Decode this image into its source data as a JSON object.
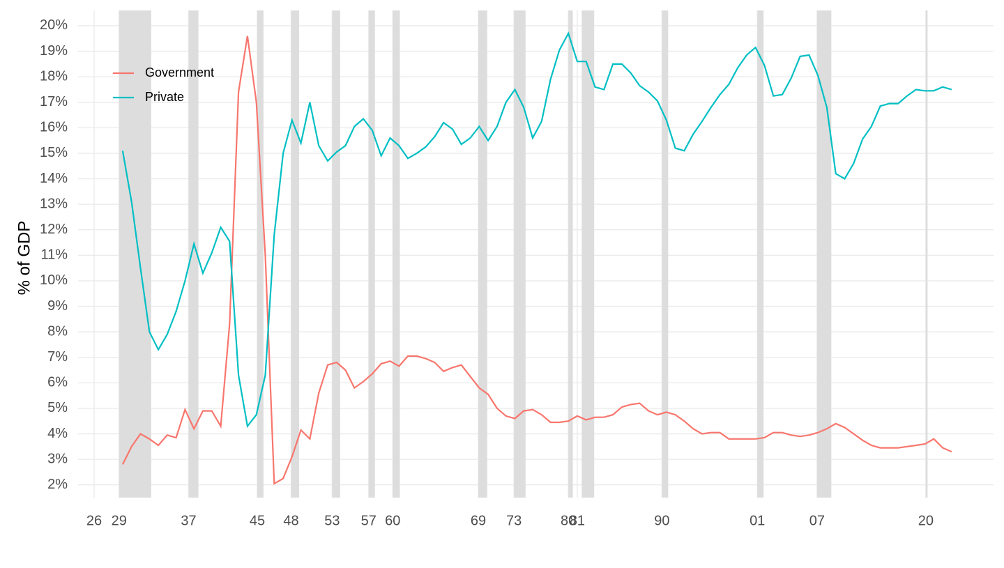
{
  "chart_data": {
    "type": "line",
    "y_label": "% of GDP",
    "x": [
      1930,
      1931,
      1932,
      1933,
      1934,
      1935,
      1936,
      1937,
      1938,
      1939,
      1940,
      1941,
      1942,
      1943,
      1944,
      1945,
      1946,
      1947,
      1948,
      1949,
      1950,
      1951,
      1952,
      1953,
      1954,
      1955,
      1956,
      1957,
      1958,
      1959,
      1960,
      1961,
      1962,
      1963,
      1964,
      1965,
      1966,
      1967,
      1968,
      1969,
      1970,
      1971,
      1972,
      1973,
      1974,
      1975,
      1976,
      1977,
      1978,
      1979,
      1980,
      1981,
      1982,
      1983,
      1984,
      1985,
      1986,
      1987,
      1988,
      1989,
      1990,
      1991,
      1992,
      1993,
      1994,
      1995,
      1996,
      1997,
      1998,
      1999,
      2000,
      2001,
      2002,
      2003,
      2004,
      2005,
      2006,
      2007,
      2008,
      2009,
      2010,
      2011,
      2012,
      2013,
      2014,
      2015,
      2016,
      2017,
      2018,
      2019,
      2020,
      2021,
      2022,
      2023
    ],
    "series": [
      {
        "name": "Government",
        "color": "#f8766d",
        "values": [
          2.8,
          3.5,
          4.0,
          3.8,
          3.55,
          3.95,
          3.85,
          4.95,
          4.2,
          4.9,
          4.9,
          4.3,
          8.3,
          17.4,
          19.6,
          17.0,
          11.0,
          2.05,
          2.25,
          3.1,
          4.15,
          3.8,
          5.6,
          6.7,
          6.8,
          6.5,
          5.8,
          6.05,
          6.35,
          6.75,
          6.85,
          6.65,
          7.05,
          7.05,
          6.95,
          6.8,
          6.45,
          6.6,
          6.7,
          6.25,
          5.8,
          5.55,
          5.0,
          4.7,
          4.6,
          4.9,
          4.95,
          4.75,
          4.45,
          4.45,
          4.5,
          4.7,
          4.55,
          4.65,
          4.65,
          4.75,
          5.05,
          5.15,
          5.2,
          4.9,
          4.75,
          4.85,
          4.75,
          4.5,
          4.2,
          4.0,
          4.05,
          4.05,
          3.8,
          3.8,
          3.8,
          3.8,
          3.85,
          4.05,
          4.05,
          3.95,
          3.9,
          3.95,
          4.05,
          4.2,
          4.4,
          4.25,
          4.0,
          3.75,
          3.55,
          3.45,
          3.45,
          3.45,
          3.5,
          3.55,
          3.6,
          3.8,
          3.45,
          3.3
        ]
      },
      {
        "name": "Private",
        "color": "#00bfc4",
        "values": [
          15.1,
          13.1,
          10.5,
          8.0,
          7.3,
          7.9,
          8.8,
          10.0,
          11.45,
          10.3,
          11.1,
          12.1,
          11.55,
          6.3,
          4.3,
          4.75,
          6.3,
          11.8,
          15.0,
          16.3,
          15.4,
          17.0,
          15.3,
          14.7,
          15.05,
          15.3,
          16.05,
          16.35,
          15.9,
          14.9,
          15.6,
          15.3,
          14.8,
          15.0,
          15.25,
          15.65,
          16.2,
          15.95,
          15.35,
          15.6,
          16.05,
          15.5,
          16.05,
          17.0,
          17.5,
          16.8,
          15.6,
          16.25,
          17.9,
          19.05,
          19.7,
          18.6,
          18.6,
          17.6,
          17.5,
          18.5,
          18.5,
          18.15,
          17.65,
          17.4,
          17.05,
          16.3,
          15.2,
          15.1,
          15.75,
          16.25,
          16.8,
          17.3,
          17.7,
          18.35,
          18.85,
          19.15,
          18.45,
          17.25,
          17.3,
          17.95,
          18.8,
          18.85,
          18.05,
          16.8,
          14.2,
          14.0,
          14.6,
          15.55,
          16.05,
          16.85,
          16.95,
          16.95,
          17.25,
          17.5,
          17.45,
          17.45,
          17.6,
          17.5
        ]
      }
    ],
    "recessions": [
      [
        1929.6,
        1933.2
      ],
      [
        1937.4,
        1938.5
      ],
      [
        1945.1,
        1945.8
      ],
      [
        1948.9,
        1949.8
      ],
      [
        1953.5,
        1954.4
      ],
      [
        1957.6,
        1958.3
      ],
      [
        1960.3,
        1961.1
      ],
      [
        1969.9,
        1970.9
      ],
      [
        1973.9,
        1975.2
      ],
      [
        1980.0,
        1980.5
      ],
      [
        1981.5,
        1982.9
      ],
      [
        1990.5,
        1991.2
      ],
      [
        2001.2,
        2001.9
      ],
      [
        2007.9,
        2009.5
      ],
      [
        2020.1,
        2020.3
      ]
    ],
    "recession_color": "#dddddd",
    "xlim": [
      1925,
      2027.7
    ],
    "xticks": [
      {
        "value": 1926.8,
        "label": "26"
      },
      {
        "value": 1929.6,
        "label": "29"
      },
      {
        "value": 1937.4,
        "label": "37"
      },
      {
        "value": 1945.1,
        "label": "45"
      },
      {
        "value": 1948.9,
        "label": "48"
      },
      {
        "value": 1953.5,
        "label": "53"
      },
      {
        "value": 1957.6,
        "label": "57"
      },
      {
        "value": 1960.3,
        "label": "60"
      },
      {
        "value": 1969.9,
        "label": "69"
      },
      {
        "value": 1973.9,
        "label": "73"
      },
      {
        "value": 1980.0,
        "label": "80"
      },
      {
        "value": 1981.0,
        "label": "81"
      },
      {
        "value": 1990.5,
        "label": "90"
      },
      {
        "value": 2001.2,
        "label": "01"
      },
      {
        "value": 2007.9,
        "label": "07"
      },
      {
        "value": 2020.1,
        "label": "20"
      }
    ],
    "ylim": [
      1.5,
      20.6
    ],
    "yticks": [
      {
        "value": 2,
        "label": "2%"
      },
      {
        "value": 3,
        "label": "3%"
      },
      {
        "value": 4,
        "label": "4%"
      },
      {
        "value": 5,
        "label": "5%"
      },
      {
        "value": 6,
        "label": "6%"
      },
      {
        "value": 7,
        "label": "7%"
      },
      {
        "value": 8,
        "label": "8%"
      },
      {
        "value": 9,
        "label": "9%"
      },
      {
        "value": 10,
        "label": "10%"
      },
      {
        "value": 11,
        "label": "11%"
      },
      {
        "value": 12,
        "label": "12%"
      },
      {
        "value": 13,
        "label": "13%"
      },
      {
        "value": 14,
        "label": "14%"
      },
      {
        "value": 15,
        "label": "15%"
      },
      {
        "value": 16,
        "label": "16%"
      },
      {
        "value": 17,
        "label": "17%"
      },
      {
        "value": 18,
        "label": "18%"
      },
      {
        "value": 19,
        "label": "19%"
      },
      {
        "value": 20,
        "label": "20%"
      }
    ],
    "grid": true,
    "legend": "top-left"
  }
}
